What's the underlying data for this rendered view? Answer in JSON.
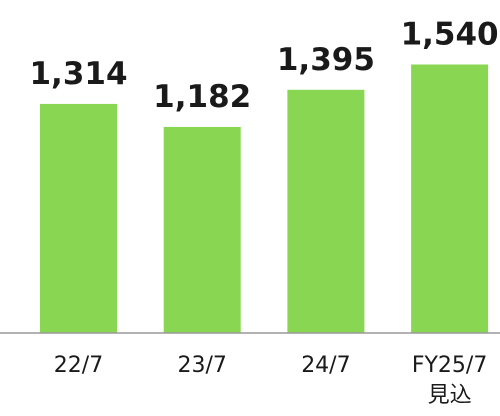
{
  "chart_data": {
    "type": "bar",
    "categories": [
      "22/7",
      "23/7",
      "24/7",
      "FY25/7\n見込"
    ],
    "values": [
      1314,
      1182,
      1395,
      1540
    ],
    "value_labels": [
      "1,314",
      "1,182",
      "1,395",
      "1,540"
    ],
    "color": "#88d651",
    "ylim": [
      0,
      1910
    ]
  }
}
